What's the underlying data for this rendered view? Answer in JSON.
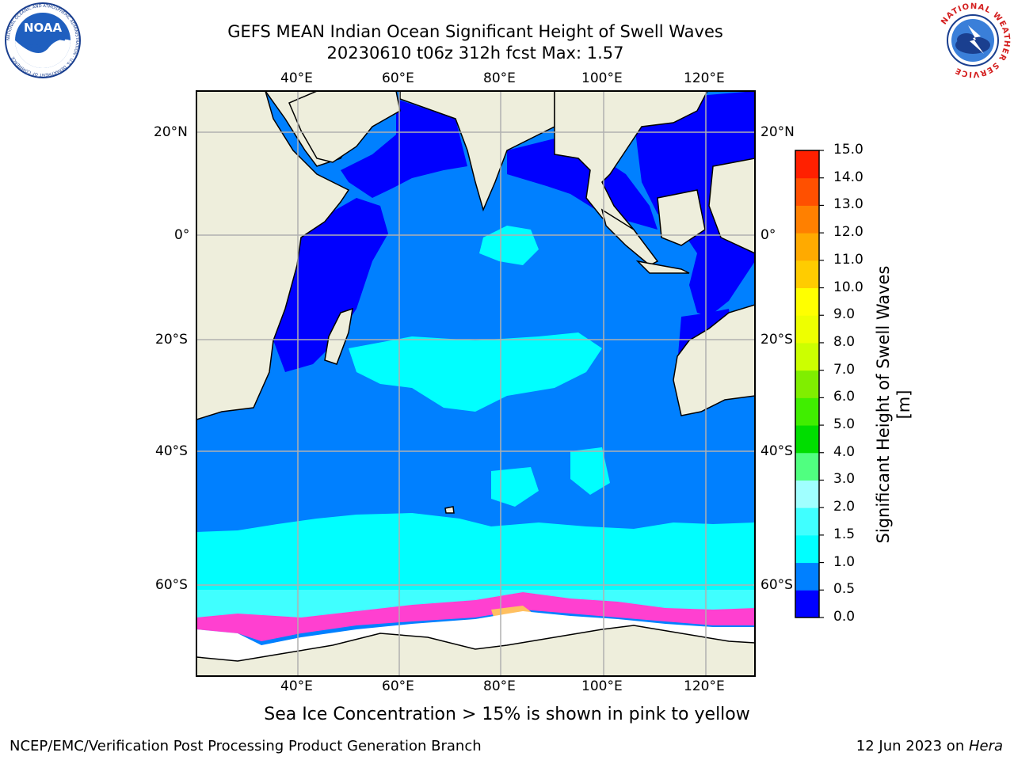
{
  "title": {
    "line1": "GEFS MEAN Indian Ocean Significant Height of Swell Waves",
    "line2": "20230610 t06z 312h fcst   Max: 1.57"
  },
  "logos": {
    "left": {
      "text": "NOAA",
      "ring_text": "NATIONAL OCEANIC AND ATMOSPHERIC ADMINISTRATION · U.S. DEPARTMENT OF COMMERCE",
      "icon": "noaa-logo"
    },
    "right": {
      "ring_text": "NATIONAL WEATHER SERVICE",
      "icon": "nws-logo"
    }
  },
  "map": {
    "lon_ticks": [
      "40°E",
      "60°E",
      "80°E",
      "100°E",
      "120°E"
    ],
    "lat_ticks": [
      "20°N",
      "0°",
      "20°S",
      "40°S",
      "60°S"
    ],
    "extent": {
      "lon": [
        20,
        130
      ],
      "lat": [
        -72,
        27
      ]
    },
    "colors": {
      "land": "#eeeedc",
      "ice": "#ffffff",
      "grid": "#b0b0b0",
      "coast": "#000000"
    }
  },
  "colorbar": {
    "label": "Significant Height of Swell Waves [m]",
    "ticks": [
      "0.0",
      "0.5",
      "1.0",
      "1.5",
      "2.0",
      "3.0",
      "4.0",
      "5.0",
      "6.0",
      "7.0",
      "8.0",
      "9.0",
      "10.0",
      "11.0",
      "12.0",
      "13.0",
      "14.0",
      "15.0"
    ],
    "colors": [
      "#0000ff",
      "#0080ff",
      "#00ffff",
      "#40ffff",
      "#a0ffff",
      "#50ff80",
      "#00dd00",
      "#40ee00",
      "#80ee00",
      "#ccff00",
      "#eeff00",
      "#ffff00",
      "#ffcc00",
      "#ffaa00",
      "#ff8000",
      "#ff5000",
      "#ff2000"
    ]
  },
  "footer": {
    "note": "Sea Ice Concentration > 15% is shown in pink to yellow",
    "left": "NCEP/EMC/Verification Post Processing Product Generation Branch",
    "right_date": "12 Jun 2023 on ",
    "right_host": "Hera"
  }
}
